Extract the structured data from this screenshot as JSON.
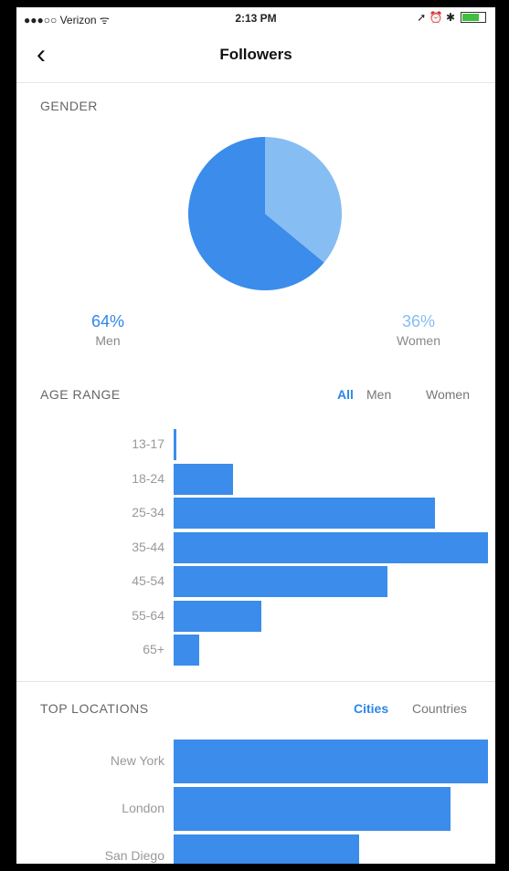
{
  "status": {
    "carrier": "●●●○○ Verizon ᯤ",
    "time": "2:13 PM",
    "right_icons": "➚ ⏰ ✱"
  },
  "nav": {
    "back_icon": "chevron-left-icon",
    "back_glyph": "‹",
    "title": "Followers"
  },
  "gender": {
    "label": "GENDER",
    "men_pct": "64%",
    "men_label": "Men",
    "women_pct": "36%",
    "women_label": "Women",
    "men_value": 64,
    "women_value": 36,
    "colors": {
      "men": "#3b8ceb",
      "women": "#86bdf3"
    }
  },
  "age_range": {
    "label": "AGE RANGE",
    "tabs": [
      {
        "label": "All",
        "active": true
      },
      {
        "label": "Men",
        "active": false
      },
      {
        "label": "Women",
        "active": false
      }
    ]
  },
  "top_locations": {
    "label": "TOP LOCATIONS",
    "tabs": [
      {
        "label": "Cities",
        "active": true
      },
      {
        "label": "Countries",
        "active": false
      }
    ]
  },
  "chart_data": [
    {
      "type": "pie",
      "categories": [
        "Men",
        "Women"
      ],
      "values": [
        64,
        36
      ],
      "colors": [
        "#3b8ceb",
        "#86bdf3"
      ]
    },
    {
      "type": "bar",
      "orientation": "horizontal",
      "categories": [
        "13-17",
        "18-24",
        "25-34",
        "35-44",
        "45-54",
        "55-64",
        "65+"
      ],
      "values": [
        1,
        19,
        83,
        100,
        68,
        28,
        8
      ],
      "ylim": [
        0,
        100
      ]
    },
    {
      "type": "bar",
      "orientation": "horizontal",
      "categories": [
        "New York",
        "London",
        "San Diego"
      ],
      "values": [
        100,
        88,
        59
      ],
      "ylim": [
        0,
        100
      ]
    }
  ]
}
